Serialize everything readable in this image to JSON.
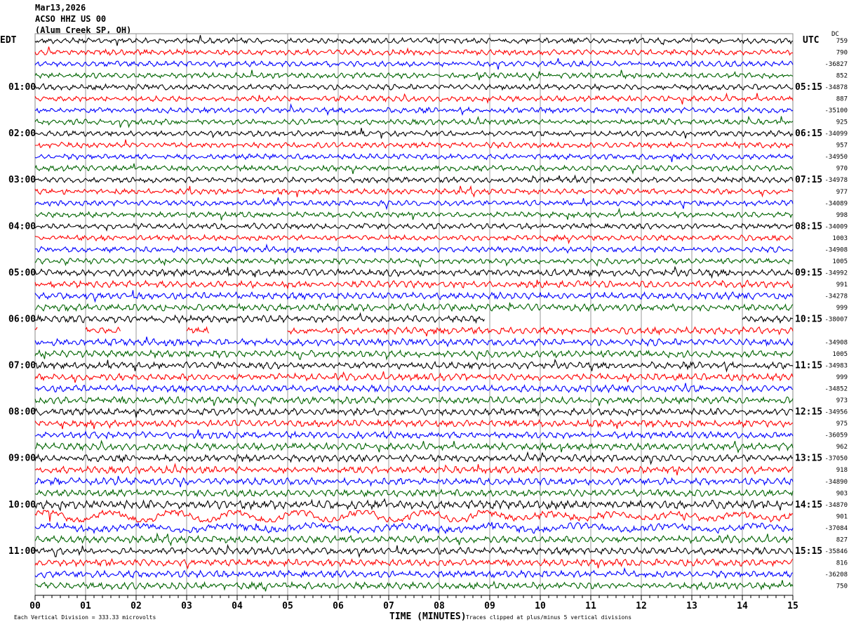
{
  "header": {
    "date": "Mar13,2026",
    "station": "ACSO HHZ US 00",
    "location": "(Alum Creek SP, OH)"
  },
  "chart_data": {
    "type": "line",
    "subtype": "helicorder",
    "left_timezone": "EDT",
    "right_timezone": "UTC",
    "dc_header": "DC",
    "xlabel": "TIME (MINUTES)",
    "x_ticks": [
      "00",
      "01",
      "02",
      "03",
      "04",
      "05",
      "06",
      "07",
      "08",
      "09",
      "10",
      "11",
      "12",
      "13",
      "14",
      "15"
    ],
    "xlim": [
      0,
      15
    ],
    "scale_note": "Each Vertical Division =  333.33 microvolts",
    "clip_note": "Traces clipped at plus/minus 5 vertical divisions",
    "trace_colors": [
      "#000000",
      "#ff0000",
      "#0000ff",
      "#006400"
    ],
    "grid": true,
    "rows": [
      {
        "left": "",
        "right": "",
        "dc": "759"
      },
      {
        "left": "",
        "right": "",
        "dc": "790"
      },
      {
        "left": "",
        "right": "",
        "dc": "-36827"
      },
      {
        "left": "",
        "right": "",
        "dc": "852"
      },
      {
        "left": "01:00",
        "right": "05:15",
        "dc": "-34878"
      },
      {
        "left": "",
        "right": "",
        "dc": "887"
      },
      {
        "left": "",
        "right": "",
        "dc": "-35100"
      },
      {
        "left": "",
        "right": "",
        "dc": "925"
      },
      {
        "left": "02:00",
        "right": "06:15",
        "dc": "-34099"
      },
      {
        "left": "",
        "right": "",
        "dc": "957"
      },
      {
        "left": "",
        "right": "",
        "dc": "-34950"
      },
      {
        "left": "",
        "right": "",
        "dc": "970"
      },
      {
        "left": "03:00",
        "right": "07:15",
        "dc": "-34978"
      },
      {
        "left": "",
        "right": "",
        "dc": "977"
      },
      {
        "left": "",
        "right": "",
        "dc": "-34089"
      },
      {
        "left": "",
        "right": "",
        "dc": "998"
      },
      {
        "left": "04:00",
        "right": "08:15",
        "dc": "-34009"
      },
      {
        "left": "",
        "right": "",
        "dc": "1003"
      },
      {
        "left": "",
        "right": "",
        "dc": "-34908"
      },
      {
        "left": "",
        "right": "",
        "dc": "1005"
      },
      {
        "left": "05:00",
        "right": "09:15",
        "dc": "-34992"
      },
      {
        "left": "",
        "right": "",
        "dc": "991"
      },
      {
        "left": "",
        "right": "",
        "dc": "-34278"
      },
      {
        "left": "",
        "right": "",
        "dc": "999"
      },
      {
        "left": "06:00",
        "right": "10:15",
        "dc": "-38007",
        "gaps": [
          [
            8.9,
            14.0
          ]
        ]
      },
      {
        "left": "",
        "right": "",
        "dc": "",
        "gaps": [
          [
            0.05,
            1.0
          ],
          [
            1.7,
            3.0
          ],
          [
            3.45,
            5.0
          ]
        ]
      },
      {
        "left": "",
        "right": "",
        "dc": "-34908"
      },
      {
        "left": "",
        "right": "",
        "dc": "1005"
      },
      {
        "left": "07:00",
        "right": "11:15",
        "dc": "-34983"
      },
      {
        "left": "",
        "right": "",
        "dc": "999"
      },
      {
        "left": "",
        "right": "",
        "dc": "-34852"
      },
      {
        "left": "",
        "right": "",
        "dc": "973"
      },
      {
        "left": "08:00",
        "right": "12:15",
        "dc": "-34956"
      },
      {
        "left": "",
        "right": "",
        "dc": "975"
      },
      {
        "left": "",
        "right": "",
        "dc": "-36059"
      },
      {
        "left": "",
        "right": "",
        "dc": "962"
      },
      {
        "left": "09:00",
        "right": "13:15",
        "dc": "-37050"
      },
      {
        "left": "",
        "right": "",
        "dc": "918"
      },
      {
        "left": "",
        "right": "",
        "dc": "-34890"
      },
      {
        "left": "",
        "right": "",
        "dc": "903"
      },
      {
        "left": "10:00",
        "right": "14:15",
        "dc": "-34870"
      },
      {
        "left": "",
        "right": "",
        "dc": "901"
      },
      {
        "left": "",
        "right": "",
        "dc": "-37084"
      },
      {
        "left": "",
        "right": "",
        "dc": "827"
      },
      {
        "left": "11:00",
        "right": "15:15",
        "dc": "-35846"
      },
      {
        "left": "",
        "right": "",
        "dc": "816"
      },
      {
        "left": "",
        "right": "",
        "dc": "-36208"
      },
      {
        "left": "",
        "right": "",
        "dc": "750"
      }
    ]
  }
}
